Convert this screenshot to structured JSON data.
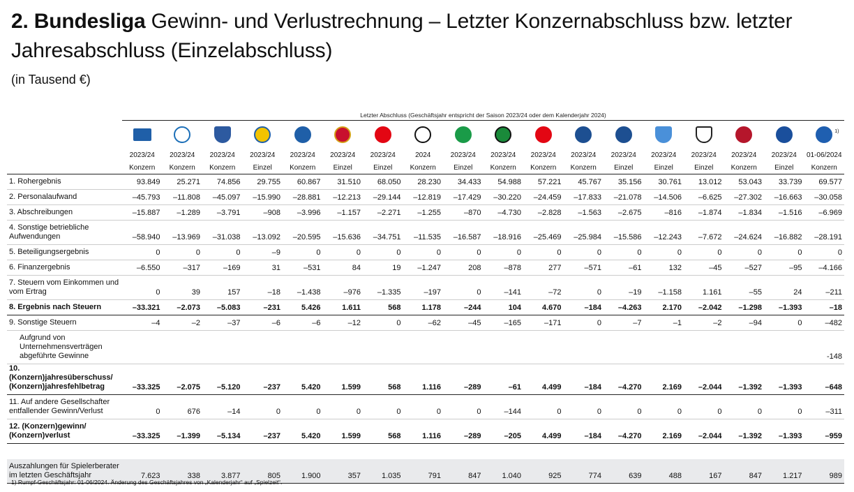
{
  "title": {
    "bold": "2. Bundesliga",
    "rest": " Gewinn- und Verlustrechnung – Letzter Konzernabschluss bzw. letzter Jahresabschluss (Einzelabschluss)"
  },
  "subtitle": "(in Tausend €)",
  "caption": "Letzter Abschluss (Geschäftsjahr entspricht der Saison 2023/24 oder dem Kalenderjahr 2024)",
  "clubs": [
    {
      "id": "hertha",
      "color": "#1f5fa8",
      "ring": "#1f5fa8",
      "shape": "flag",
      "year": "2023/24",
      "type": "Konzern"
    },
    {
      "id": "bielefeld",
      "color": "#ffffff",
      "ring": "#1c6fb8",
      "shape": "circle",
      "year": "2023/24",
      "type": "Konzern"
    },
    {
      "id": "bochum",
      "color": "#2d5aa0",
      "ring": "#2d5aa0",
      "shape": "shield",
      "year": "2023/24",
      "type": "Konzern"
    },
    {
      "id": "braunschweig",
      "color": "#f2c300",
      "ring": "#1f5fa8",
      "shape": "circle",
      "year": "2023/24",
      "type": "Einzel"
    },
    {
      "id": "darmstadt",
      "color": "#1f5fa8",
      "ring": "#1f5fa8",
      "shape": "circle",
      "year": "2023/24",
      "type": "Konzern"
    },
    {
      "id": "dresden",
      "color": "#c8102e",
      "ring": "#d4a017",
      "shape": "circle",
      "year": "2023/24",
      "type": "Einzel"
    },
    {
      "id": "duesseldorf",
      "color": "#e30613",
      "ring": "#e30613",
      "shape": "circle",
      "year": "2023/24",
      "type": "Einzel"
    },
    {
      "id": "elversberg",
      "color": "#ffffff",
      "ring": "#111111",
      "shape": "circle",
      "year": "2024",
      "type": "Konzern"
    },
    {
      "id": "fuerth",
      "color": "#1a9b48",
      "ring": "#1a9b48",
      "shape": "circle",
      "year": "2023/24",
      "type": "Einzel"
    },
    {
      "id": "hannover",
      "color": "#1a8a3a",
      "ring": "#111111",
      "shape": "circle",
      "year": "2023/24",
      "type": "Konzern"
    },
    {
      "id": "kaiserslautern",
      "color": "#e30613",
      "ring": "#e30613",
      "shape": "circle",
      "year": "2023/24",
      "type": "Konzern"
    },
    {
      "id": "karlsruhe",
      "color": "#1d4f91",
      "ring": "#1d4f91",
      "shape": "circle",
      "year": "2023/24",
      "type": "Konzern"
    },
    {
      "id": "kiel",
      "color": "#1d4f91",
      "ring": "#1d4f91",
      "shape": "circle",
      "year": "2023/24",
      "type": "Einzel"
    },
    {
      "id": "magdeburg",
      "color": "#4a90d9",
      "ring": "#4a90d9",
      "shape": "shield",
      "year": "2023/24",
      "type": "Einzel"
    },
    {
      "id": "muenster",
      "color": "#ffffff",
      "ring": "#222222",
      "shape": "shield",
      "year": "2023/24",
      "type": "Einzel"
    },
    {
      "id": "nuernberg",
      "color": "#b5162b",
      "ring": "#b5162b",
      "shape": "circle",
      "year": "2023/24",
      "type": "Konzern"
    },
    {
      "id": "paderborn",
      "color": "#1a4f9c",
      "ring": "#1a4f9c",
      "shape": "circle",
      "year": "2023/24",
      "type": "Einzel"
    },
    {
      "id": "schalke",
      "color": "#1f5fb0",
      "ring": "#1f5fb0",
      "shape": "circle",
      "year": "01-06/2024",
      "type": "Konzern",
      "note": "1)"
    }
  ],
  "rows": [
    {
      "label": "1. Rohergebnis",
      "h": 1,
      "values": [
        "93.849",
        "25.271",
        "74.856",
        "29.755",
        "60.867",
        "31.510",
        "68.050",
        "28.230",
        "34.433",
        "54.988",
        "57.221",
        "45.767",
        "35.156",
        "30.761",
        "13.012",
        "53.043",
        "33.739",
        "69.577"
      ]
    },
    {
      "label": "2. Personalaufwand",
      "h": 1,
      "values": [
        "–45.793",
        "–11.808",
        "–45.097",
        "–15.990",
        "–28.881",
        "–12.213",
        "–29.144",
        "–12.819",
        "–17.429",
        "–30.220",
        "–24.459",
        "–17.833",
        "–21.078",
        "–14.506",
        "–6.625",
        "–27.302",
        "–16.663",
        "–30.058"
      ]
    },
    {
      "label": "3. Abschreibungen",
      "h": 1,
      "values": [
        "–15.887",
        "–1.289",
        "–3.791",
        "–908",
        "–3.996",
        "–1.157",
        "–2.271",
        "–1.255",
        "–870",
        "–4.730",
        "–2.828",
        "–1.563",
        "–2.675",
        "–816",
        "–1.874",
        "–1.834",
        "–1.516",
        "–6.969"
      ]
    },
    {
      "label": "4. Sonstige betriebliche Aufwendungen",
      "h": 2,
      "values": [
        "–58.940",
        "–13.969",
        "–31.038",
        "–13.092",
        "–20.595",
        "–15.636",
        "–34.751",
        "–11.535",
        "–16.587",
        "–18.916",
        "–25.469",
        "–25.984",
        "–15.586",
        "–12.243",
        "–7.672",
        "–24.624",
        "–16.882",
        "–28.191"
      ]
    },
    {
      "label": "5. Beteiligungsergebnis",
      "h": 1,
      "values": [
        "0",
        "0",
        "0",
        "–9",
        "0",
        "0",
        "0",
        "0",
        "0",
        "0",
        "0",
        "0",
        "0",
        "0",
        "0",
        "0",
        "0",
        "0"
      ]
    },
    {
      "label": "6. Finanzergebnis",
      "h": 1,
      "values": [
        "–6.550",
        "–317",
        "–169",
        "31",
        "–531",
        "84",
        "19",
        "–1.247",
        "208",
        "–878",
        "277",
        "–571",
        "–61",
        "132",
        "–45",
        "–527",
        "–95",
        "–4.166"
      ]
    },
    {
      "label": "7. Steuern vom Einkommen und vom Ertrag",
      "h": 2,
      "values": [
        "0",
        "39",
        "157",
        "–18",
        "–1.438",
        "–976",
        "–1.335",
        "–197",
        "0",
        "–141",
        "–72",
        "0",
        "–19",
        "–1.158",
        "1.161",
        "–55",
        "24",
        "–211"
      ]
    },
    {
      "label": "8. Ergebnis nach Steuern",
      "h": 1,
      "bold": true,
      "thick": true,
      "values": [
        "–33.321",
        "–2.073",
        "–5.083",
        "–231",
        "5.426",
        "1.611",
        "568",
        "1.178",
        "–244",
        "104",
        "4.670",
        "–184",
        "–4.263",
        "2.170",
        "–2.042",
        "–1.298",
        "–1.393",
        "–18"
      ]
    },
    {
      "label": "9. Sonstige Steuern",
      "h": 1,
      "values": [
        "–4",
        "–2",
        "–37",
        "–6",
        "–6",
        "–12",
        "0",
        "–62",
        "–45",
        "–165",
        "–171",
        "0",
        "–7",
        "–1",
        "–2",
        "–94",
        "0",
        "–482"
      ]
    },
    {
      "label": "Aufgrund von Unternehmensverträgen abgeführte Gewinne",
      "h": 3,
      "indent": true,
      "values": [
        "",
        "",
        "",
        "",
        "",
        "",
        "",
        "",
        "",
        "",
        "",
        "",
        "",
        "",
        "",
        "",
        "",
        "-148"
      ]
    },
    {
      "label": "10. (Konzern)jahresüberschuss/ (Konzern)jahresfehlbetrag",
      "h": 2,
      "bold": true,
      "thick": true,
      "values": [
        "–33.325",
        "–2.075",
        "–5.120",
        "–237",
        "5.420",
        "1.599",
        "568",
        "1.116",
        "–289",
        "–61",
        "4.499",
        "–184",
        "–4.270",
        "2.169",
        "–2.044",
        "–1.392",
        "–1.393",
        "–648"
      ]
    },
    {
      "label": "11. Auf andere Gesellschafter entfallender Gewinn/Verlust",
      "h": 2,
      "values": [
        "0",
        "676",
        "–14",
        "0",
        "0",
        "0",
        "0",
        "0",
        "0",
        "–144",
        "0",
        "0",
        "0",
        "0",
        "0",
        "0",
        "0",
        "–311"
      ]
    },
    {
      "label": "12. (Konzern)gewinn/ (Konzern)verlust",
      "h": 2,
      "bold": true,
      "thick": true,
      "values": [
        "–33.325",
        "–1.399",
        "–5.134",
        "–237",
        "5.420",
        "1.599",
        "568",
        "1.116",
        "–289",
        "–205",
        "4.499",
        "–184",
        "–4.270",
        "2.169",
        "–2.044",
        "–1.392",
        "–1.393",
        "–959"
      ]
    },
    {
      "spacer": true
    },
    {
      "label": "Auszahlungen für Spielerberater im letzten Geschäftsjahr",
      "h": 2,
      "gray": true,
      "values": [
        "7.623",
        "338",
        "3.877",
        "805",
        "1.900",
        "357",
        "1.035",
        "791",
        "847",
        "1.040",
        "925",
        "774",
        "639",
        "488",
        "167",
        "847",
        "1.217",
        "989"
      ]
    }
  ],
  "footnote": "1)  Rumpf-Geschäftsjahr: 01-06/2024. Änderung des Geschäftsjahres von „Kalenderjahr“ auf „Spielzeit“."
}
